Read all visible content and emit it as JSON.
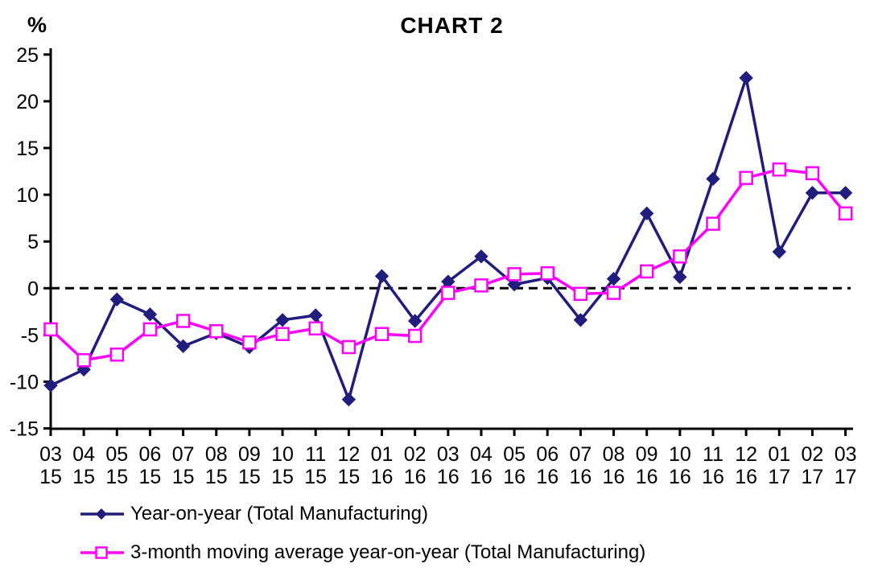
{
  "page": {
    "background": "#ffffff"
  },
  "chart_data": {
    "type": "line",
    "title": "CHART 2",
    "ylabel": "%",
    "xlabel": "",
    "ylim": [
      -15,
      25
    ],
    "ytick_step": 5,
    "grid": false,
    "zero_line": "dashed",
    "legend_position": "bottom-left",
    "axis_color": "#000000",
    "categories": [
      [
        "03",
        "15"
      ],
      [
        "04",
        "15"
      ],
      [
        "05",
        "15"
      ],
      [
        "06",
        "15"
      ],
      [
        "07",
        "15"
      ],
      [
        "08",
        "15"
      ],
      [
        "09",
        "15"
      ],
      [
        "10",
        "15"
      ],
      [
        "11",
        "15"
      ],
      [
        "12",
        "15"
      ],
      [
        "01",
        "16"
      ],
      [
        "02",
        "16"
      ],
      [
        "03",
        "16"
      ],
      [
        "04",
        "16"
      ],
      [
        "05",
        "16"
      ],
      [
        "06",
        "16"
      ],
      [
        "07",
        "16"
      ],
      [
        "08",
        "16"
      ],
      [
        "09",
        "16"
      ],
      [
        "10",
        "16"
      ],
      [
        "11",
        "16"
      ],
      [
        "12",
        "16"
      ],
      [
        "01",
        "17"
      ],
      [
        "02",
        "17"
      ],
      [
        "03",
        "17"
      ]
    ],
    "series": [
      {
        "name": "Year-on-year (Total Manufacturing)",
        "color": "#211D7D",
        "marker": "diamond-filled",
        "values": [
          -10.4,
          -8.7,
          -1.2,
          -2.8,
          -6.2,
          -4.8,
          -6.3,
          -3.4,
          -2.9,
          -11.9,
          1.3,
          -3.5,
          0.7,
          3.4,
          0.4,
          1.1,
          -3.4,
          1.0,
          8.0,
          1.2,
          11.7,
          22.5,
          3.9,
          10.2,
          10.2
        ]
      },
      {
        "name": "3-month moving average year-on-year (Total Manufacturing)",
        "color": "#FF00FF",
        "marker": "square-open",
        "values": [
          -4.4,
          -7.7,
          -7.1,
          -4.4,
          -3.5,
          -4.6,
          -5.8,
          -4.9,
          -4.3,
          -6.3,
          -4.9,
          -5.1,
          -0.5,
          0.3,
          1.5,
          1.6,
          -0.6,
          -0.5,
          1.8,
          3.4,
          6.9,
          11.8,
          12.7,
          12.3,
          8.0
        ]
      }
    ]
  }
}
